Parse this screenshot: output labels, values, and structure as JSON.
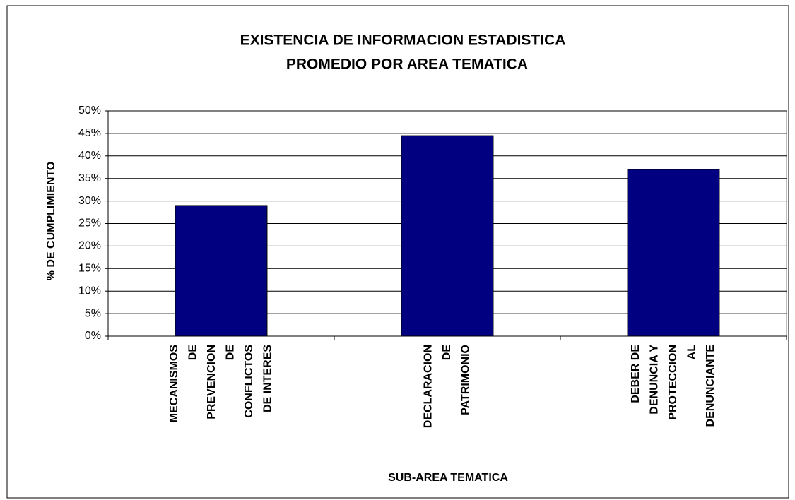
{
  "chart_data": {
    "type": "bar",
    "title": "EXISTENCIA DE INFORMACION ESTADISTICA",
    "subtitle": "PROMEDIO POR AREA TEMATICA",
    "y_label": "% DE CUMPLIMIENTO",
    "x_label": "SUB-AREA TEMATICA",
    "categories": [
      [
        "MECANISMOS",
        "DE",
        "PREVENCION",
        "DE",
        "CONFLICTOS",
        "DE INTERES"
      ],
      [
        "DECLARACION",
        "DE",
        "PATRIMONIO"
      ],
      [
        "DEBER DE",
        "DENUNCIA Y",
        "PROTECCION",
        "AL",
        "DENUNCIANTE"
      ]
    ],
    "values": [
      29,
      44.5,
      37
    ],
    "color": "#000080",
    "ylim": [
      0,
      50
    ],
    "yticks": [
      {
        "value": 0,
        "label": "0%"
      },
      {
        "value": 5,
        "label": "5%"
      },
      {
        "value": 10,
        "label": "10%"
      },
      {
        "value": 15,
        "label": "15%"
      },
      {
        "value": 20,
        "label": "20%"
      },
      {
        "value": 25,
        "label": "25%"
      },
      {
        "value": 30,
        "label": "30%"
      },
      {
        "value": 35,
        "label": "35%"
      },
      {
        "value": 40,
        "label": "40%"
      },
      {
        "value": 45,
        "label": "45%"
      },
      {
        "value": 50,
        "label": "50%"
      }
    ],
    "grid": true
  }
}
